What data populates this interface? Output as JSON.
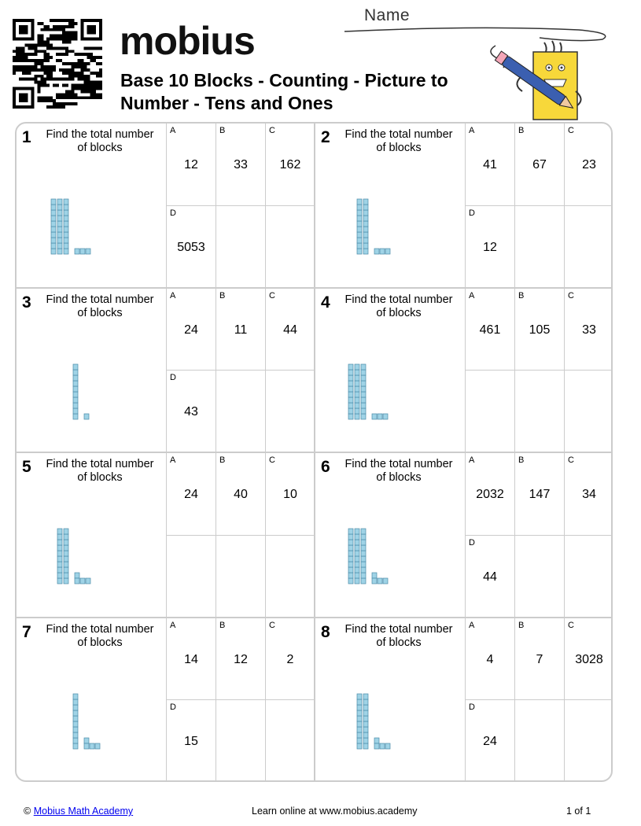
{
  "header": {
    "logo_text": "mobius",
    "title_line1": "Base 10 Blocks - Counting - Picture to",
    "title_line2": "Number - Tens and Ones",
    "name_label": "Name"
  },
  "questions": [
    {
      "number": "1",
      "prompt": "Find the total number of blocks",
      "tens": 3,
      "ones": 3,
      "options": [
        {
          "letter": "A",
          "value": "12"
        },
        {
          "letter": "B",
          "value": "33"
        },
        {
          "letter": "C",
          "value": "162"
        },
        {
          "letter": "D",
          "value": "5053"
        }
      ]
    },
    {
      "number": "2",
      "prompt": "Find the total number of blocks",
      "tens": 2,
      "ones": 3,
      "options": [
        {
          "letter": "A",
          "value": "41"
        },
        {
          "letter": "B",
          "value": "67"
        },
        {
          "letter": "C",
          "value": "23"
        },
        {
          "letter": "D",
          "value": "12"
        }
      ]
    },
    {
      "number": "3",
      "prompt": "Find the total number of blocks",
      "tens": 1,
      "ones": 1,
      "options": [
        {
          "letter": "A",
          "value": "24"
        },
        {
          "letter": "B",
          "value": "11"
        },
        {
          "letter": "C",
          "value": "44"
        },
        {
          "letter": "D",
          "value": "43"
        }
      ]
    },
    {
      "number": "4",
      "prompt": "Find the total number of blocks",
      "tens": 3,
      "ones": 3,
      "options": [
        {
          "letter": "A",
          "value": "461"
        },
        {
          "letter": "B",
          "value": "105"
        },
        {
          "letter": "C",
          "value": "33"
        }
      ]
    },
    {
      "number": "5",
      "prompt": "Find the total number of blocks",
      "tens": 2,
      "ones": 4,
      "options": [
        {
          "letter": "A",
          "value": "24"
        },
        {
          "letter": "B",
          "value": "40"
        },
        {
          "letter": "C",
          "value": "10"
        }
      ]
    },
    {
      "number": "6",
      "prompt": "Find the total number of blocks",
      "tens": 3,
      "ones": 4,
      "options": [
        {
          "letter": "A",
          "value": "2032"
        },
        {
          "letter": "B",
          "value": "147"
        },
        {
          "letter": "C",
          "value": "34"
        },
        {
          "letter": "D",
          "value": "44"
        }
      ]
    },
    {
      "number": "7",
      "prompt": "Find the total number of blocks",
      "tens": 1,
      "ones": 4,
      "options": [
        {
          "letter": "A",
          "value": "14"
        },
        {
          "letter": "B",
          "value": "12"
        },
        {
          "letter": "C",
          "value": "2"
        },
        {
          "letter": "D",
          "value": "15"
        }
      ]
    },
    {
      "number": "8",
      "prompt": "Find the total number of blocks",
      "tens": 2,
      "ones": 4,
      "options": [
        {
          "letter": "A",
          "value": "4"
        },
        {
          "letter": "B",
          "value": "7"
        },
        {
          "letter": "C",
          "value": "3028"
        },
        {
          "letter": "D",
          "value": "24"
        }
      ]
    }
  ],
  "footer": {
    "copyright_symbol": "©",
    "academy_link": "Mobius Math Academy",
    "learn_online": "Learn online at www.mobius.academy",
    "page": "1 of 1"
  },
  "colors": {
    "block_fill": "#9fd3e6",
    "block_stroke": "#4a8aa8",
    "grid_border": "#cccccc",
    "mascot_yellow": "#f7d83a",
    "pencil_blue": "#3b5fb0"
  }
}
